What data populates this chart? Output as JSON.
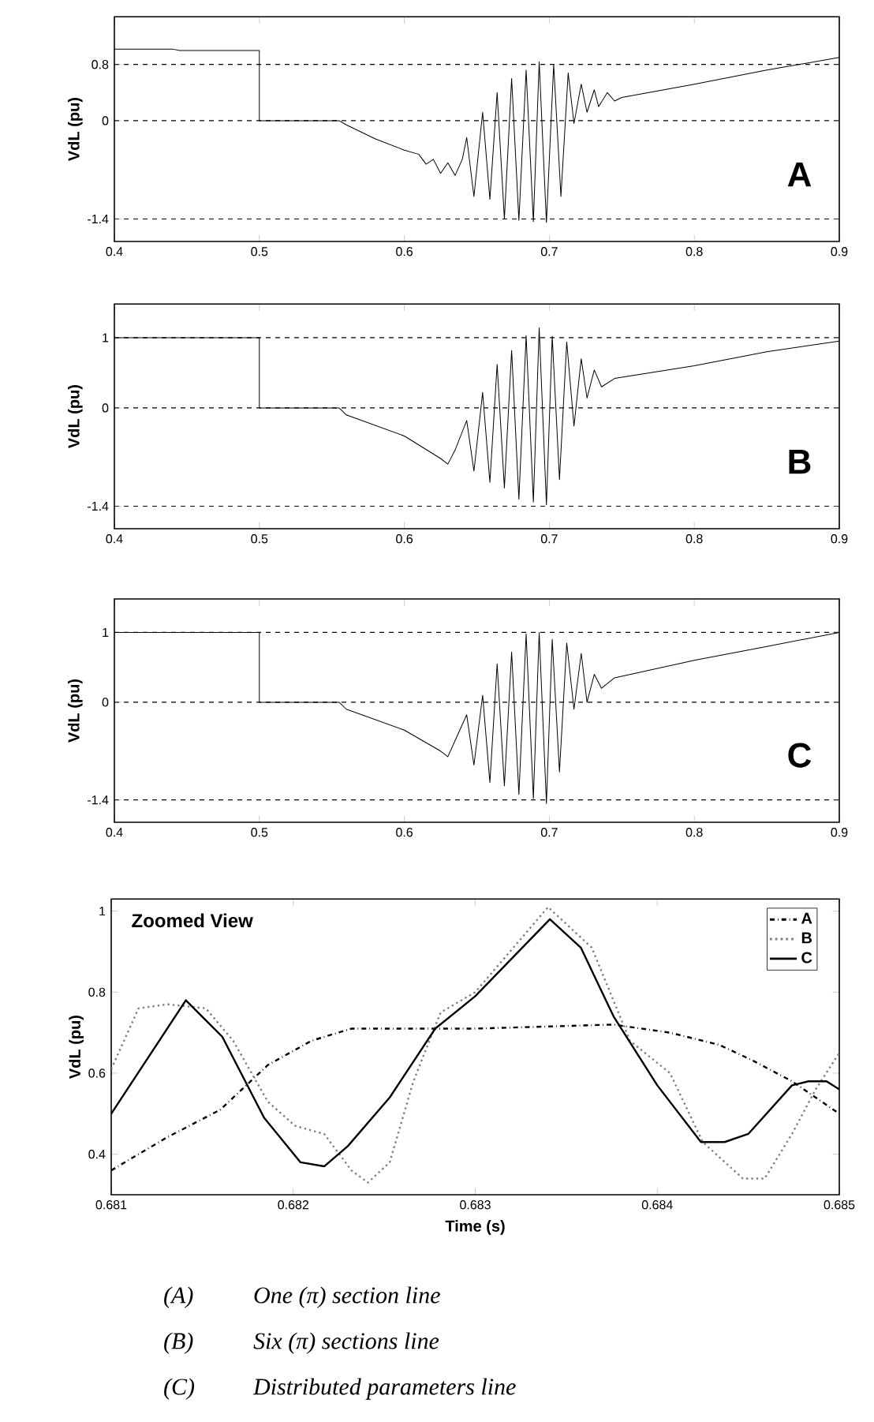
{
  "chart_data": [
    {
      "type": "line",
      "ylabel": "VdL (pu)",
      "annotations": [
        "A"
      ],
      "xlim": [
        0.4,
        0.9
      ],
      "ylim": [
        -1.72,
        1.48
      ],
      "xticks": [
        0.4,
        0.5,
        0.6,
        0.7,
        0.8,
        0.9
      ],
      "yticks": [
        -1.4,
        0,
        0.8
      ],
      "grid": "y",
      "series": [
        {
          "color": "#000000",
          "line_style": "solid",
          "x": [
            0.4,
            0.44,
            0.445,
            0.45,
            0.499,
            0.5,
            0.5,
            0.555,
            0.56,
            0.58,
            0.6,
            0.61,
            0.615,
            0.62,
            0.625,
            0.63,
            0.635,
            0.64,
            0.643,
            0.648,
            0.654,
            0.659,
            0.664,
            0.669,
            0.674,
            0.679,
            0.684,
            0.689,
            0.693,
            0.698,
            0.703,
            0.708,
            0.713,
            0.717,
            0.722,
            0.726,
            0.731,
            0.734,
            0.74,
            0.745,
            0.75,
            0.8,
            0.85,
            0.9
          ],
          "values": [
            1.02,
            1.02,
            1.0,
            1.0,
            1.0,
            1.0,
            0,
            0,
            -0.06,
            -0.26,
            -0.42,
            -0.48,
            -0.62,
            -0.55,
            -0.75,
            -0.6,
            -0.78,
            -0.55,
            -0.24,
            -1.08,
            0.12,
            -1.12,
            0.4,
            -1.4,
            0.6,
            -1.42,
            0.72,
            -1.44,
            0.84,
            -1.45,
            0.8,
            -1.08,
            0.68,
            -0.04,
            0.52,
            0.12,
            0.44,
            0.2,
            0.4,
            0.28,
            0.33,
            0.52,
            0.72,
            0.9
          ]
        }
      ]
    },
    {
      "type": "line",
      "ylabel": "VdL (pu)",
      "annotations": [
        "B"
      ],
      "xlim": [
        0.4,
        0.9
      ],
      "ylim": [
        -1.72,
        1.48
      ],
      "xticks": [
        0.4,
        0.5,
        0.6,
        0.7,
        0.8,
        0.9
      ],
      "yticks": [
        -1.4,
        0,
        1
      ],
      "grid": "y",
      "series": [
        {
          "color": "#000000",
          "line_style": "solid",
          "x": [
            0.4,
            0.45,
            0.5,
            0.5,
            0.555,
            0.56,
            0.6,
            0.625,
            0.63,
            0.635,
            0.643,
            0.648,
            0.654,
            0.659,
            0.664,
            0.669,
            0.674,
            0.679,
            0.684,
            0.689,
            0.693,
            0.698,
            0.702,
            0.707,
            0.712,
            0.717,
            0.722,
            0.726,
            0.731,
            0.736,
            0.745,
            0.8,
            0.85,
            0.9
          ],
          "values": [
            1.0,
            1.0,
            1.0,
            0,
            0,
            -0.1,
            -0.4,
            -0.72,
            -0.8,
            -0.6,
            -0.18,
            -0.9,
            0.22,
            -1.06,
            0.62,
            -1.14,
            0.82,
            -1.3,
            1.03,
            -1.34,
            1.14,
            -1.38,
            1.02,
            -1.02,
            0.94,
            -0.26,
            0.7,
            0.14,
            0.54,
            0.3,
            0.42,
            0.6,
            0.8,
            0.95
          ]
        }
      ]
    },
    {
      "type": "line",
      "ylabel": "VdL (pu)",
      "annotations": [
        "C"
      ],
      "xlim": [
        0.4,
        0.9
      ],
      "ylim": [
        -1.72,
        1.48
      ],
      "xticks": [
        0.4,
        0.5,
        0.6,
        0.7,
        0.8,
        0.9
      ],
      "yticks": [
        -1.4,
        0,
        1
      ],
      "grid": "y",
      "series": [
        {
          "color": "#000000",
          "line_style": "solid",
          "x": [
            0.4,
            0.45,
            0.5,
            0.5,
            0.555,
            0.56,
            0.6,
            0.625,
            0.63,
            0.635,
            0.643,
            0.648,
            0.654,
            0.659,
            0.664,
            0.669,
            0.674,
            0.679,
            0.684,
            0.689,
            0.693,
            0.698,
            0.702,
            0.707,
            0.712,
            0.717,
            0.722,
            0.726,
            0.731,
            0.736,
            0.745,
            0.8,
            0.85,
            0.9
          ],
          "values": [
            1.0,
            1.0,
            1.0,
            0,
            0,
            -0.1,
            -0.4,
            -0.7,
            -0.78,
            -0.55,
            -0.18,
            -0.9,
            0.1,
            -1.15,
            0.55,
            -1.2,
            0.72,
            -1.32,
            0.98,
            -1.38,
            1.0,
            -1.45,
            0.9,
            -1.0,
            0.85,
            -0.1,
            0.7,
            0,
            0.4,
            0.2,
            0.35,
            0.6,
            0.8,
            1.0
          ]
        }
      ]
    },
    {
      "type": "line",
      "title": "Zoomed View",
      "xlabel": "Time (s)",
      "ylabel": "VdL (pu)",
      "annotations": [
        "(A)",
        "(B)",
        "(C)",
        "One  (π) section line",
        "Six (π) sections line",
        "Distributed parameters line"
      ],
      "xlim": [
        0.681,
        0.685
      ],
      "ylim": [
        0.3,
        1.03
      ],
      "xticks": [
        0.681,
        0.682,
        0.683,
        0.684,
        0.685
      ],
      "yticks": [
        0.4,
        0.6,
        0.8,
        1
      ],
      "legend": "top right",
      "series": [
        {
          "name": "A",
          "color": "#000000",
          "line_style": "dashdot",
          "x": [
            0.681,
            0.6813,
            0.6816,
            0.68186,
            0.6821,
            0.68232,
            0.683,
            0.68376,
            0.68407,
            0.68434,
            0.68453,
            0.68474,
            0.685
          ],
          "values": [
            0.36,
            0.44,
            0.51,
            0.62,
            0.68,
            0.71,
            0.71,
            0.72,
            0.7,
            0.67,
            0.63,
            0.58,
            0.5
          ]
        },
        {
          "name": "B",
          "color": "#808080",
          "line_style": "dotted",
          "x": [
            0.681,
            0.68115,
            0.68131,
            0.68152,
            0.68167,
            0.68186,
            0.68201,
            0.68217,
            0.68232,
            0.68241,
            0.68253,
            0.68266,
            0.68281,
            0.683,
            0.6834,
            0.68364,
            0.68385,
            0.68407,
            0.68425,
            0.68447,
            0.68459,
            0.68474,
            0.68487,
            0.685
          ],
          "values": [
            0.61,
            0.76,
            0.77,
            0.76,
            0.68,
            0.53,
            0.47,
            0.45,
            0.36,
            0.33,
            0.38,
            0.58,
            0.75,
            0.8,
            1.01,
            0.91,
            0.68,
            0.6,
            0.43,
            0.34,
            0.34,
            0.45,
            0.56,
            0.65
          ]
        },
        {
          "name": "C",
          "color": "#000000",
          "line_style": "solid",
          "x": [
            0.681,
            0.68141,
            0.68161,
            0.68184,
            0.68204,
            0.68217,
            0.6823,
            0.68253,
            0.68278,
            0.683,
            0.68341,
            0.68358,
            0.68376,
            0.684,
            0.68424,
            0.68437,
            0.6845,
            0.68474,
            0.68483,
            0.68493,
            0.685
          ],
          "values": [
            0.5,
            0.78,
            0.69,
            0.49,
            0.38,
            0.37,
            0.42,
            0.54,
            0.71,
            0.79,
            0.98,
            0.91,
            0.74,
            0.57,
            0.43,
            0.43,
            0.45,
            0.57,
            0.58,
            0.58,
            0.56
          ]
        }
      ]
    }
  ]
}
